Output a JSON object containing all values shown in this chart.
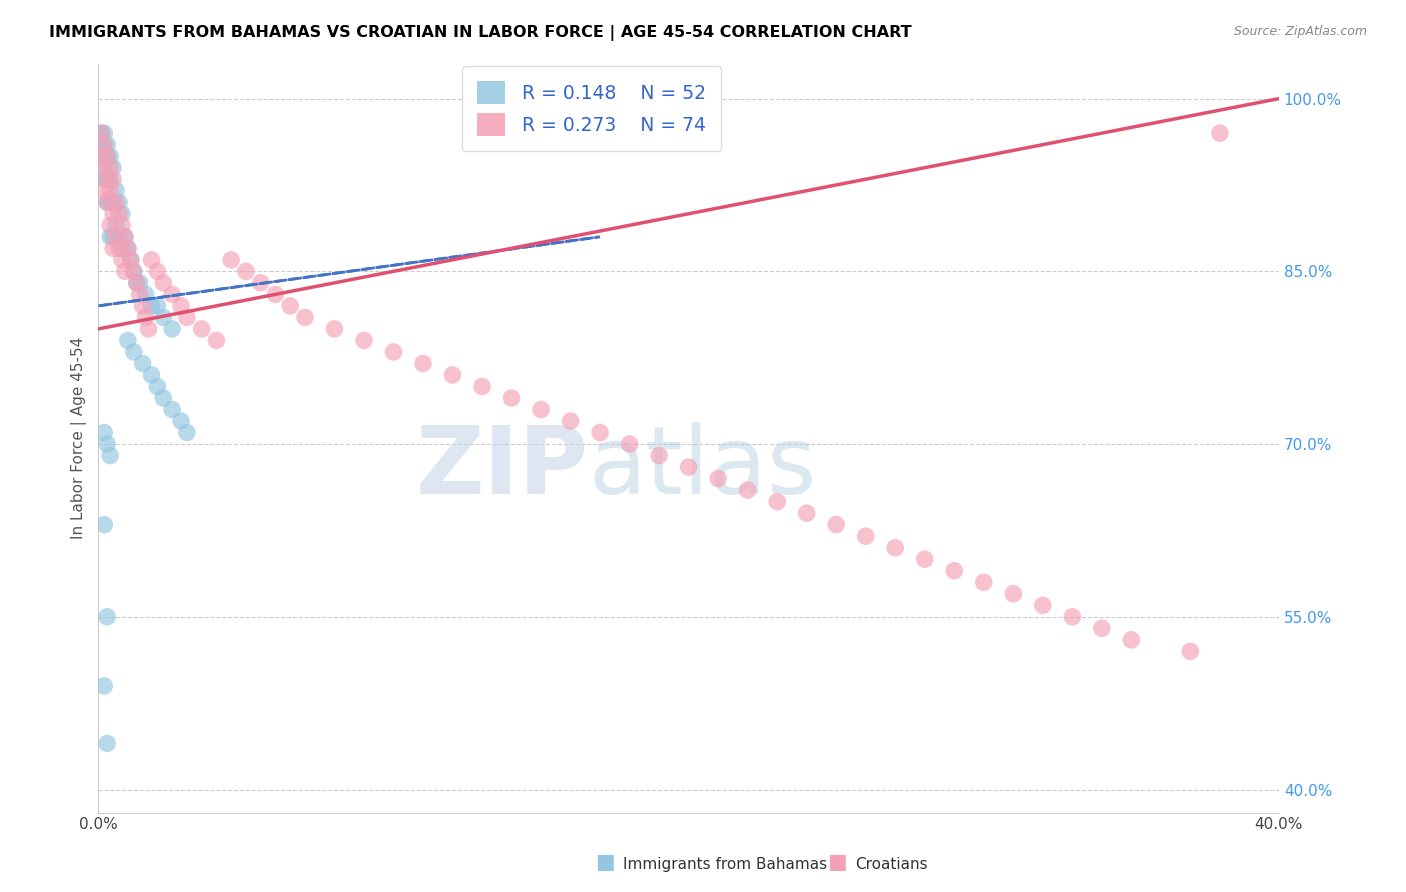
{
  "title": "IMMIGRANTS FROM BAHAMAS VS CROATIAN IN LABOR FORCE | AGE 45-54 CORRELATION CHART",
  "source": "Source: ZipAtlas.com",
  "ylabel": "In Labor Force | Age 45-54",
  "xlim": [
    0.0,
    0.4
  ],
  "ylim": [
    0.38,
    1.03
  ],
  "bahamas_color": "#93c6e0",
  "croatian_color": "#f4a0b5",
  "bahamas_trend_color": "#4472c4",
  "croatian_trend_color": "#e05070",
  "legend_r_bahamas": "R = 0.148",
  "legend_n_bahamas": "N = 52",
  "legend_r_croatian": "R = 0.273",
  "legend_n_croatian": "N = 74",
  "bahamas_label": "Immigrants from Bahamas",
  "croatian_label": "Croatians",
  "watermark_zip": "ZIP",
  "watermark_atlas": "atlas",
  "ytick_vals": [
    1.0,
    0.85,
    0.7,
    0.55,
    0.4
  ],
  "ytick_labels": [
    "100.0%",
    "85.0%",
    "70.0%",
    "55.0%",
    "40.0%"
  ],
  "xtick_vals": [
    0.0,
    0.05,
    0.1,
    0.15,
    0.2,
    0.25,
    0.3,
    0.35,
    0.4
  ],
  "xtick_labels": [
    "0.0%",
    "",
    "",
    "",
    "",
    "",
    "",
    "",
    "40.0%"
  ],
  "bahamas_x": [
    0.001,
    0.001,
    0.001,
    0.002,
    0.002,
    0.002,
    0.002,
    0.002,
    0.003,
    0.003,
    0.003,
    0.003,
    0.004,
    0.004,
    0.004,
    0.004,
    0.005,
    0.005,
    0.005,
    0.006,
    0.006,
    0.007,
    0.007,
    0.008,
    0.008,
    0.009,
    0.01,
    0.011,
    0.012,
    0.013,
    0.014,
    0.016,
    0.018,
    0.02,
    0.022,
    0.025,
    0.01,
    0.012,
    0.015,
    0.018,
    0.02,
    0.022,
    0.025,
    0.028,
    0.03,
    0.002,
    0.003,
    0.004,
    0.002,
    0.003,
    0.002,
    0.003
  ],
  "bahamas_y": [
    0.97,
    0.96,
    0.95,
    0.97,
    0.96,
    0.95,
    0.94,
    0.93,
    0.96,
    0.95,
    0.93,
    0.91,
    0.95,
    0.93,
    0.91,
    0.88,
    0.94,
    0.91,
    0.88,
    0.92,
    0.89,
    0.91,
    0.88,
    0.9,
    0.87,
    0.88,
    0.87,
    0.86,
    0.85,
    0.84,
    0.84,
    0.83,
    0.82,
    0.82,
    0.81,
    0.8,
    0.79,
    0.78,
    0.77,
    0.76,
    0.75,
    0.74,
    0.73,
    0.72,
    0.71,
    0.71,
    0.7,
    0.69,
    0.63,
    0.55,
    0.49,
    0.44
  ],
  "croatian_x": [
    0.001,
    0.001,
    0.002,
    0.002,
    0.002,
    0.003,
    0.003,
    0.003,
    0.004,
    0.004,
    0.004,
    0.005,
    0.005,
    0.005,
    0.006,
    0.006,
    0.007,
    0.007,
    0.008,
    0.008,
    0.009,
    0.009,
    0.01,
    0.011,
    0.012,
    0.013,
    0.014,
    0.015,
    0.016,
    0.017,
    0.018,
    0.02,
    0.022,
    0.025,
    0.028,
    0.03,
    0.035,
    0.04,
    0.045,
    0.05,
    0.055,
    0.06,
    0.065,
    0.07,
    0.08,
    0.09,
    0.1,
    0.11,
    0.12,
    0.13,
    0.14,
    0.15,
    0.16,
    0.17,
    0.18,
    0.19,
    0.2,
    0.21,
    0.22,
    0.23,
    0.24,
    0.25,
    0.26,
    0.27,
    0.28,
    0.29,
    0.3,
    0.31,
    0.32,
    0.33,
    0.34,
    0.35,
    0.37,
    0.38
  ],
  "croatian_y": [
    0.97,
    0.95,
    0.96,
    0.94,
    0.92,
    0.95,
    0.93,
    0.91,
    0.94,
    0.92,
    0.89,
    0.93,
    0.9,
    0.87,
    0.91,
    0.88,
    0.9,
    0.87,
    0.89,
    0.86,
    0.88,
    0.85,
    0.87,
    0.86,
    0.85,
    0.84,
    0.83,
    0.82,
    0.81,
    0.8,
    0.86,
    0.85,
    0.84,
    0.83,
    0.82,
    0.81,
    0.8,
    0.79,
    0.86,
    0.85,
    0.84,
    0.83,
    0.82,
    0.81,
    0.8,
    0.79,
    0.78,
    0.77,
    0.76,
    0.75,
    0.74,
    0.73,
    0.72,
    0.71,
    0.7,
    0.69,
    0.68,
    0.67,
    0.66,
    0.65,
    0.64,
    0.63,
    0.62,
    0.61,
    0.6,
    0.59,
    0.58,
    0.57,
    0.56,
    0.55,
    0.54,
    0.53,
    0.52,
    0.97
  ],
  "bah_trend_x0": 0.0,
  "bah_trend_y0": 0.82,
  "bah_trend_x1": 0.17,
  "bah_trend_y1": 0.88,
  "cro_trend_x0": 0.0,
  "cro_trend_y0": 0.8,
  "cro_trend_x1": 0.4,
  "cro_trend_y1": 1.0
}
